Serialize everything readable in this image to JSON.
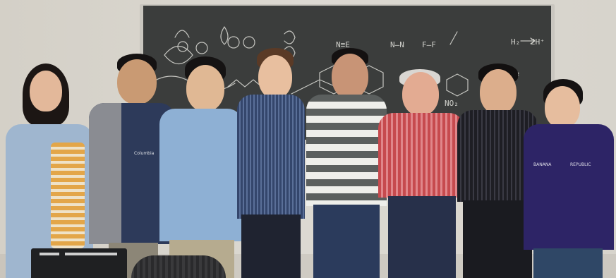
{
  "scene": {
    "description_label": "Group photo in front of a chalkboard"
  },
  "chalkboard": {
    "notation": [
      "N≡E",
      "N–N",
      "F–F",
      "H₂",
      "2H⁺",
      "H₂",
      "NO₂"
    ]
  },
  "people": [
    {
      "id": "person-1",
      "label": "woman-left"
    },
    {
      "id": "person-2",
      "label": "man-jacket"
    },
    {
      "id": "person-3",
      "label": "man-glasses-blue-shirt"
    },
    {
      "id": "person-4",
      "label": "man-curly-hair"
    },
    {
      "id": "person-5",
      "label": "man-striped-shirt"
    },
    {
      "id": "person-6",
      "label": "elderly-man-red-shirt"
    },
    {
      "id": "person-7",
      "label": "man-dark-shirt"
    },
    {
      "id": "person-8",
      "label": "woman-hoodie"
    }
  ],
  "text_on_clothing": {
    "jacket": "Columbia",
    "hoodie_left": "BANANA",
    "hoodie_right": "REPUBLIC"
  },
  "colors": {
    "chalkboard": "#3b3d3c",
    "chalk": "#e8e8e2",
    "wall": "#d9d6cf"
  }
}
